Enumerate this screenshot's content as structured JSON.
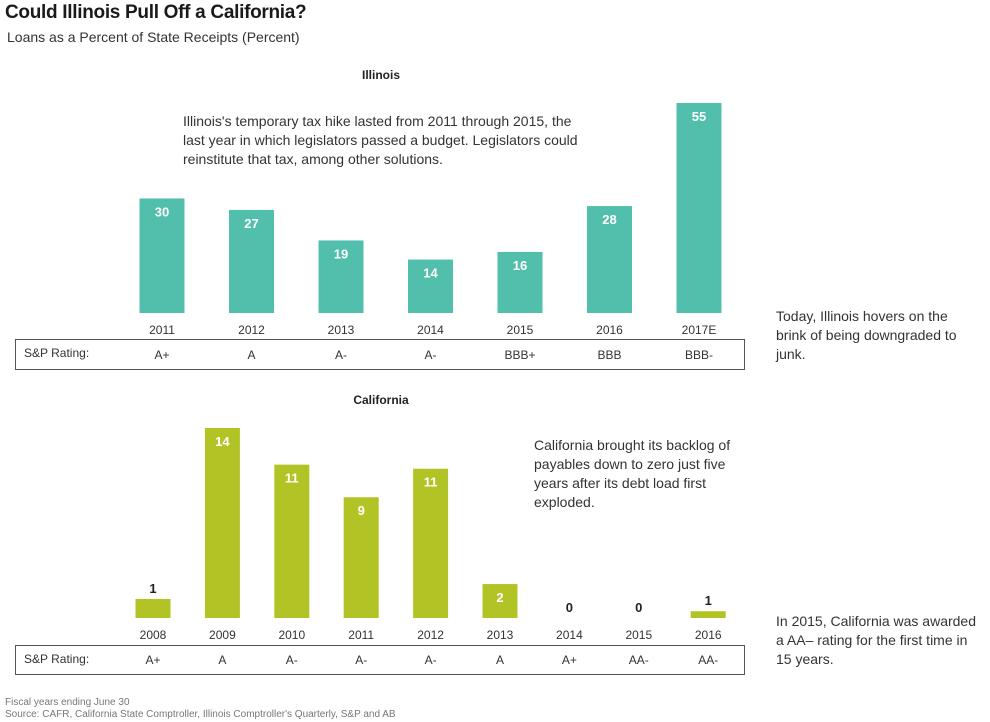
{
  "header": {
    "title": "Could Illinois Pull Off a California?",
    "subtitle": "Loans as a Percent of State Receipts (Percent)"
  },
  "chart_data": [
    {
      "type": "bar",
      "title": "Illinois",
      "ylabel": "Loans as a Percent of State Receipts (Percent)",
      "categories": [
        "2011",
        "2012",
        "2013",
        "2014",
        "2015",
        "2016",
        "2017E"
      ],
      "values": [
        30,
        27,
        19,
        14,
        16,
        28,
        55
      ],
      "labels": [
        "30",
        "27",
        "19",
        "14",
        "16",
        "28",
        "55"
      ],
      "ylim": [
        0,
        55
      ],
      "grid": false,
      "bar_color": "#52bfad",
      "rating_label": "S&P Rating:",
      "ratings": [
        "A+",
        "A",
        "A-",
        "A-",
        "BBB+",
        "BBB",
        "BBB-"
      ],
      "annotation": "Illinois's temporary tax hike lasted from 2011 through 2015, the last year in which legislators passed a budget. Legislators could reinstitute that tax, among other solutions.",
      "side_note": "Today, Illinois hovers on the brink of being downgraded to junk."
    },
    {
      "type": "bar",
      "title": "California",
      "ylabel": "Loans as a Percent of State Receipts (Percent)",
      "categories": [
        "2008",
        "2009",
        "2010",
        "2011",
        "2012",
        "2013",
        "2014",
        "2015",
        "2016"
      ],
      "values": [
        1.4,
        14,
        11.3,
        8.9,
        11,
        2.5,
        0,
        0,
        0.5
      ],
      "labels": [
        "1",
        "14",
        "11",
        "9",
        "11",
        "2",
        "0",
        "0",
        "1"
      ],
      "ylim": [
        0,
        14
      ],
      "grid": false,
      "bar_color": "#b2c425",
      "rating_label": "S&P Rating:",
      "ratings": [
        "A+",
        "A",
        "A-",
        "A-",
        "A-",
        "A",
        "A+",
        "AA-",
        "AA-"
      ],
      "annotation": "California brought its backlog of payables down to zero just five years after its debt load first exploded.",
      "side_note": "In 2015, California was awarded a AA– rating for the first time in 15 years."
    }
  ],
  "footer": {
    "note": "Fiscal years ending June 30",
    "source": "Source: CAFR, California State Comptroller, Illinois Comptroller's Quarterly, S&P and AB"
  }
}
